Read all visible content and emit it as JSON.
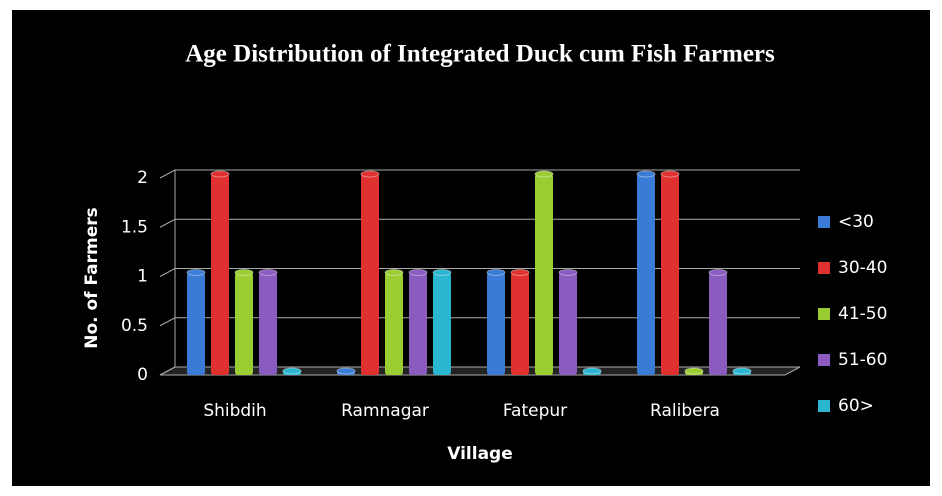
{
  "chart_data": {
    "type": "bar",
    "title": "Age Distribution of Integrated Duck cum Fish Farmers",
    "x_label": "Village",
    "y_label": "No. of Farmers",
    "categories": [
      "Shibdih",
      "Ramnagar",
      "Fatepur",
      "Ralibera"
    ],
    "series": [
      {
        "name": "<30",
        "color": "#3a7bd5",
        "values": [
          1,
          0,
          1,
          2
        ]
      },
      {
        "name": "30-40",
        "color": "#e03030",
        "values": [
          2,
          2,
          1,
          2
        ]
      },
      {
        "name": "41-50",
        "color": "#9acd32",
        "values": [
          1,
          1,
          2,
          0
        ]
      },
      {
        "name": "51-60",
        "color": "#8a5cc0",
        "values": [
          1,
          1,
          1,
          1
        ]
      },
      {
        "name": "60>",
        "color": "#2ab5d0",
        "values": [
          0,
          1,
          0,
          0
        ]
      }
    ],
    "ylim": [
      0,
      2
    ],
    "yticks": [
      0,
      0.5,
      1,
      1.5,
      2
    ],
    "grid": true,
    "legend": "right"
  }
}
